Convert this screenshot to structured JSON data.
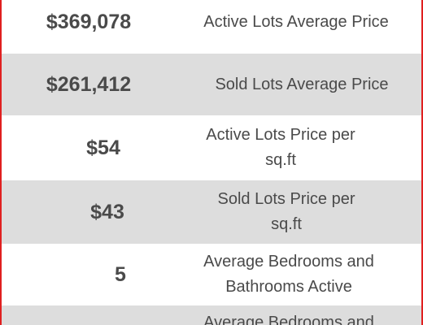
{
  "rows": [
    {
      "value": "$369,078",
      "label": "Active Lots Average Price"
    },
    {
      "value": "$261,412",
      "label": "Sold Lots Average Price"
    },
    {
      "value": "$54",
      "label": "Active Lots Price per sq.ft"
    },
    {
      "value": "$43",
      "label": "Sold Lots Price per sq.ft"
    },
    {
      "value": "5",
      "label_line1": "Average Bedrooms and",
      "label_line2": "Bathrooms Active"
    },
    {
      "label_line1": "Average Bedrooms and"
    }
  ],
  "colors": {
    "border": "#e02020",
    "row_alt": "#dddddd",
    "text": "#4a4a4a"
  }
}
